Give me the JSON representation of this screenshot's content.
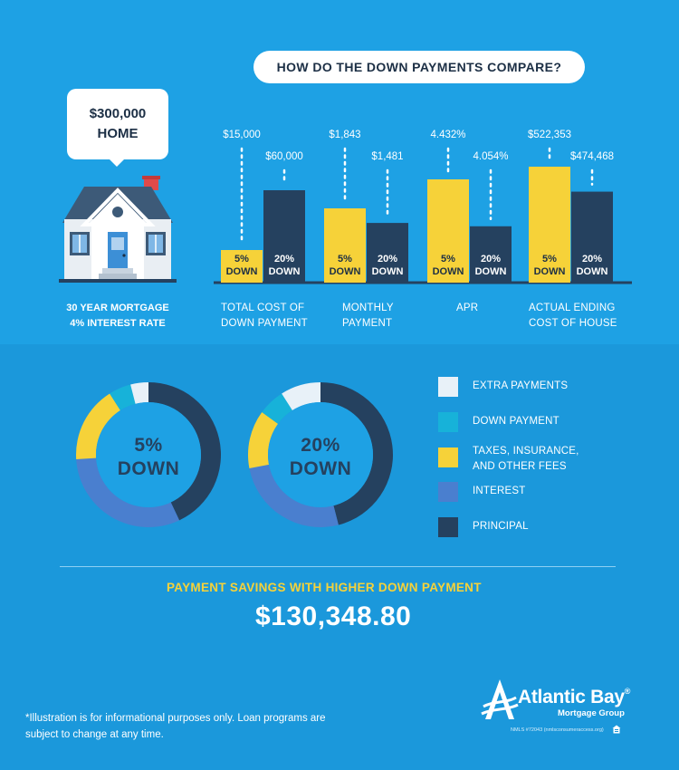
{
  "header": {
    "title": "HOW DO THE DOWN PAYMENTS COMPARE?"
  },
  "home": {
    "bubble_line1": "$300,000",
    "bubble_line2": "HOME",
    "caption_line1": "30 YEAR MORTGAGE",
    "caption_line2": "4% INTEREST RATE"
  },
  "colors": {
    "yellow": "#f6d239",
    "navy": "#25415f",
    "light_blue": "#17b2d9",
    "periwinkle": "#4a7fcf",
    "extra": "#e8f1f8",
    "dotted": "#ffffff"
  },
  "chart_data": [
    {
      "type": "bar",
      "categories": [
        "TOTAL COST OF DOWN PAYMENT",
        "MONTHLY PAYMENT",
        "APR",
        "ACTUAL ENDING COST OF HOUSE"
      ],
      "category_lines": [
        [
          "TOTAL COST OF",
          "DOWN PAYMENT"
        ],
        [
          "MONTHLY",
          "PAYMENT"
        ],
        [
          "APR"
        ],
        [
          "ACTUAL ENDING",
          "COST OF HOUSE"
        ]
      ],
      "series": [
        {
          "label_lines": [
            "5%",
            "DOWN"
          ],
          "color": "#f6d239",
          "values": [
            15000,
            1843,
            4.432,
            522353
          ],
          "value_labels": [
            "$15,000",
            "$1,843",
            "4.432%",
            "$522,353"
          ]
        },
        {
          "label_lines": [
            "20%",
            "DOWN"
          ],
          "color": "#25415f",
          "values": [
            60000,
            1481,
            4.054,
            474468
          ],
          "value_labels": [
            "$60,000",
            "$1,481",
            "4.054%",
            "$474,468"
          ]
        }
      ]
    },
    {
      "type": "pie",
      "donut": true,
      "segment_names": [
        "EXTRA PAYMENTS",
        "DOWN PAYMENT",
        "TAXES, INSURANCE, AND OTHER FEES",
        "INTEREST",
        "PRINCIPAL"
      ],
      "charts": [
        {
          "center_line1": "5%",
          "center_line2": "DOWN",
          "values": [
            0.04,
            0.05,
            0.17,
            0.31,
            0.43
          ]
        },
        {
          "center_line1": "20%",
          "center_line2": "DOWN",
          "values": [
            0.09,
            0.06,
            0.13,
            0.26,
            0.46
          ]
        }
      ]
    }
  ],
  "legend": {
    "items": [
      {
        "lines": [
          "EXTRA PAYMENTS"
        ],
        "color": "#e8f1f8"
      },
      {
        "lines": [
          "DOWN PAYMENT"
        ],
        "color": "#17b2d9"
      },
      {
        "lines": [
          "TAXES, INSURANCE,",
          "AND OTHER FEES"
        ],
        "color": "#f6d239"
      },
      {
        "lines": [
          "INTEREST"
        ],
        "color": "#4a7fcf"
      },
      {
        "lines": [
          "PRINCIPAL"
        ],
        "color": "#25415f"
      }
    ]
  },
  "savings": {
    "label": "PAYMENT SAVINGS WITH HIGHER DOWN PAYMENT",
    "value": "$130,348.80"
  },
  "footnote": {
    "line1": "*Illustration is for informational purposes only. Loan programs are",
    "line2": "subject to change at any time."
  },
  "brand": {
    "name": "Atlantic Bay",
    "registered": "®",
    "sub": "Mortgage Group",
    "nmls": "NMLS #72043 (nmlsconsumeraccess.org)"
  }
}
